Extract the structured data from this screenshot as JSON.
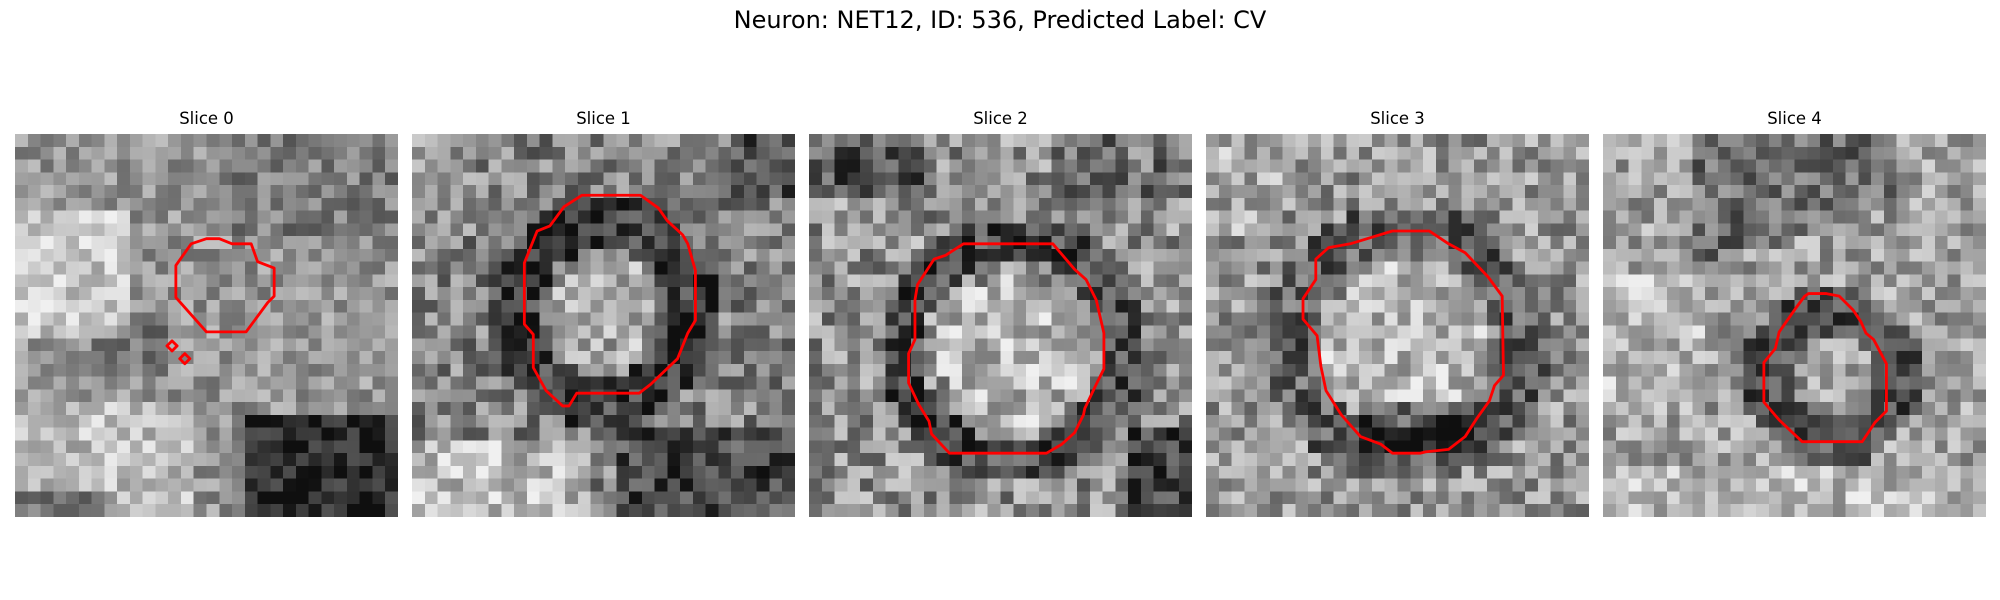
{
  "figure": {
    "title": "Neuron: NET12, ID: 536, Predicted Label: CV"
  },
  "panels": [
    {
      "title": "Slice 0",
      "seed": 11,
      "base": 150,
      "noise": 45
    },
    {
      "title": "Slice 1",
      "seed": 23,
      "base": 130,
      "noise": 60
    },
    {
      "title": "Slice 2",
      "seed": 37,
      "base": 145,
      "noise": 65
    },
    {
      "title": "Slice 3",
      "seed": 51,
      "base": 150,
      "noise": 60
    },
    {
      "title": "Slice 4",
      "seed": 73,
      "base": 160,
      "noise": 55
    }
  ],
  "colors": {
    "contour": "#ff0000",
    "background": "#ffffff"
  }
}
